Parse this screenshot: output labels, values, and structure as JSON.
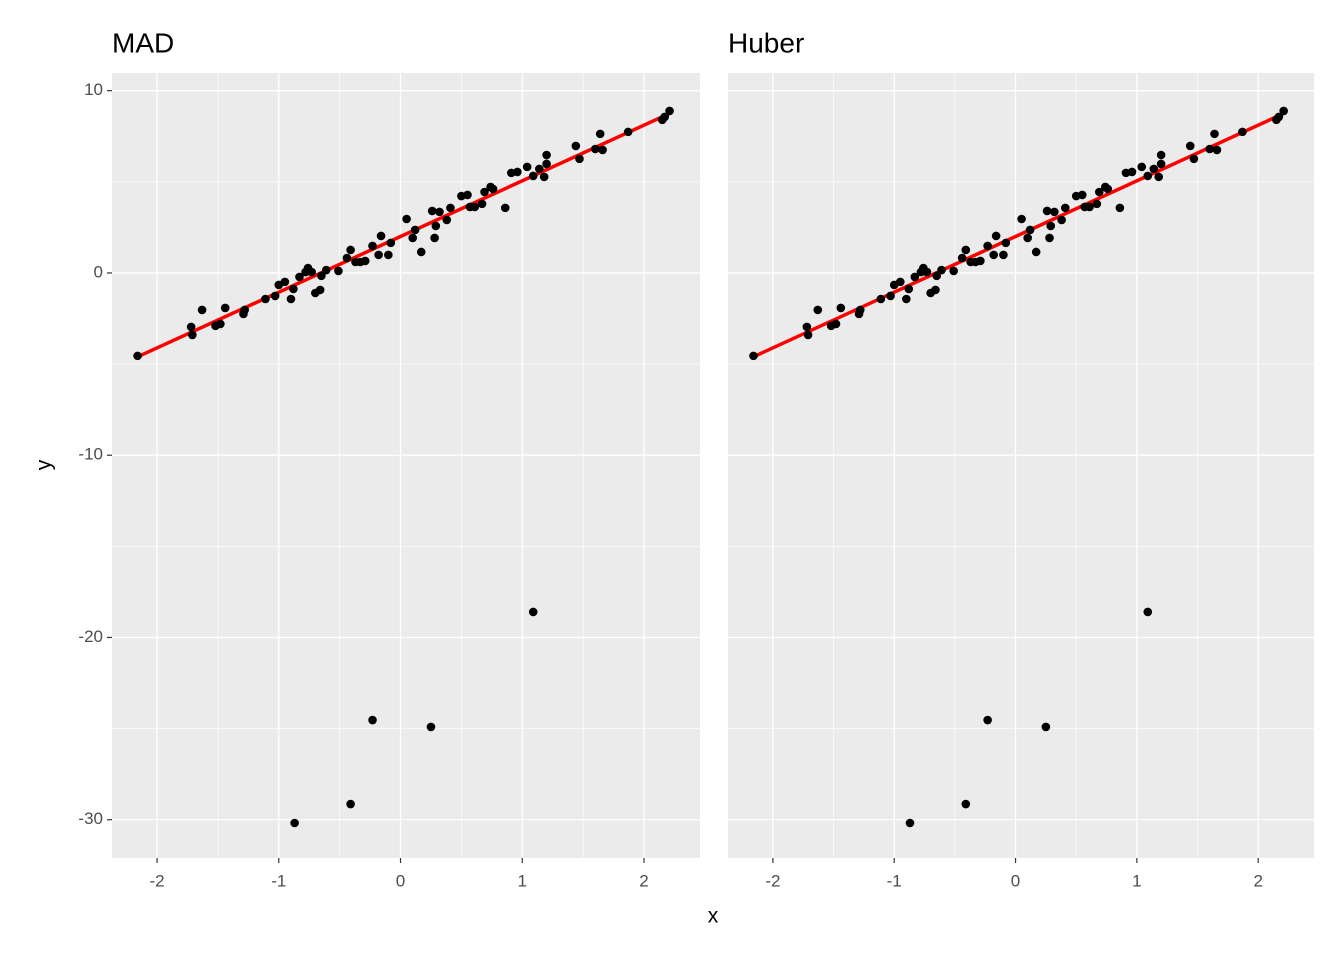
{
  "x_label": "x",
  "y_label": "y",
  "chart_data": [
    {
      "type": "scatter",
      "title": "MAD",
      "x": [
        -2.16,
        -1.72,
        -1.71,
        -1.63,
        -1.52,
        -1.48,
        -1.44,
        -1.29,
        -1.28,
        -1.11,
        -1.03,
        -1.0,
        -0.95,
        -0.9,
        -0.88,
        -0.83,
        -0.78,
        -0.76,
        -0.73,
        -0.7,
        -0.66,
        -0.65,
        -0.61,
        -0.51,
        -0.44,
        -0.41,
        -0.37,
        -0.33,
        -0.29,
        -0.23,
        -0.18,
        -0.16,
        -0.1,
        -0.08,
        0.05,
        0.1,
        0.12,
        0.17,
        0.26,
        0.28,
        0.29,
        0.32,
        0.38,
        0.41,
        0.5,
        0.55,
        0.57,
        0.61,
        0.67,
        0.69,
        0.74,
        0.76,
        0.86,
        0.91,
        0.96,
        1.04,
        1.09,
        1.14,
        1.18,
        1.2,
        1.2,
        1.44,
        1.47,
        1.6,
        1.64,
        1.66,
        1.87,
        2.15,
        2.17,
        2.21,
        1.09,
        -0.23,
        0.25,
        -0.41,
        -0.87
      ],
      "y": [
        -4.55,
        -2.96,
        -3.4,
        -2.03,
        -2.9,
        -2.8,
        -1.92,
        -2.25,
        -2.03,
        -1.43,
        -1.26,
        -0.66,
        -0.49,
        -1.43,
        -0.88,
        -0.22,
        0.05,
        0.27,
        0.05,
        -1.1,
        -0.93,
        -0.16,
        0.16,
        0.11,
        0.82,
        1.26,
        0.6,
        0.6,
        0.66,
        1.48,
        0.99,
        2.03,
        0.99,
        1.65,
        2.96,
        1.92,
        2.36,
        1.15,
        3.4,
        1.92,
        2.58,
        3.35,
        2.91,
        3.57,
        4.22,
        4.28,
        3.62,
        3.62,
        3.79,
        4.44,
        4.72,
        4.61,
        3.57,
        5.49,
        5.54,
        5.82,
        5.32,
        5.71,
        5.27,
        6.47,
        5.98,
        6.97,
        6.26,
        6.8,
        7.63,
        6.75,
        7.74,
        8.4,
        8.56,
        8.89,
        -18.6,
        -24.53,
        -24.91,
        -29.14,
        -30.18
      ],
      "point_color": "#000000",
      "fit": {
        "x": [
          -2.16,
          2.21
        ],
        "y": [
          -4.6,
          8.75
        ],
        "color": "#ff0000"
      },
      "xlim": [
        -2.37,
        2.46
      ],
      "ylim": [
        -32.1,
        10.97
      ],
      "xticks": [
        -2,
        -1,
        0,
        1,
        2
      ],
      "yticks": [
        -30,
        -20,
        -10,
        0,
        10
      ],
      "minor_xticks": [
        -1.5,
        -0.5,
        0.5,
        1.5
      ],
      "minor_yticks": [
        -25,
        -15,
        -5,
        5
      ]
    },
    {
      "type": "scatter",
      "title": "Huber",
      "x": [
        -2.16,
        -1.72,
        -1.71,
        -1.63,
        -1.52,
        -1.48,
        -1.44,
        -1.29,
        -1.28,
        -1.11,
        -1.03,
        -1.0,
        -0.95,
        -0.9,
        -0.88,
        -0.83,
        -0.78,
        -0.76,
        -0.73,
        -0.7,
        -0.66,
        -0.65,
        -0.61,
        -0.51,
        -0.44,
        -0.41,
        -0.37,
        -0.33,
        -0.29,
        -0.23,
        -0.18,
        -0.16,
        -0.1,
        -0.08,
        0.05,
        0.1,
        0.12,
        0.17,
        0.26,
        0.28,
        0.29,
        0.32,
        0.38,
        0.41,
        0.5,
        0.55,
        0.57,
        0.61,
        0.67,
        0.69,
        0.74,
        0.76,
        0.86,
        0.91,
        0.96,
        1.04,
        1.09,
        1.14,
        1.18,
        1.2,
        1.2,
        1.44,
        1.47,
        1.6,
        1.64,
        1.66,
        1.87,
        2.15,
        2.17,
        2.21,
        1.09,
        -0.23,
        0.25,
        -0.41,
        -0.87
      ],
      "y": [
        -4.55,
        -2.96,
        -3.4,
        -2.03,
        -2.9,
        -2.8,
        -1.92,
        -2.25,
        -2.03,
        -1.43,
        -1.26,
        -0.66,
        -0.49,
        -1.43,
        -0.88,
        -0.22,
        0.05,
        0.27,
        0.05,
        -1.1,
        -0.93,
        -0.16,
        0.16,
        0.11,
        0.82,
        1.26,
        0.6,
        0.6,
        0.66,
        1.48,
        0.99,
        2.03,
        0.99,
        1.65,
        2.96,
        1.92,
        2.36,
        1.15,
        3.4,
        1.92,
        2.58,
        3.35,
        2.91,
        3.57,
        4.22,
        4.28,
        3.62,
        3.62,
        3.79,
        4.44,
        4.72,
        4.61,
        3.57,
        5.49,
        5.54,
        5.82,
        5.32,
        5.71,
        5.27,
        6.47,
        5.98,
        6.97,
        6.26,
        6.8,
        7.63,
        6.75,
        7.74,
        8.4,
        8.56,
        8.89,
        -18.6,
        -24.53,
        -24.91,
        -29.14,
        -30.18
      ],
      "point_color": "#000000",
      "fit": {
        "x": [
          -2.16,
          2.21
        ],
        "y": [
          -4.6,
          8.75
        ],
        "color": "#ff0000"
      },
      "xlim": [
        -2.37,
        2.46
      ],
      "ylim": [
        -32.1,
        10.97
      ],
      "xticks": [
        -2,
        -1,
        0,
        1,
        2
      ],
      "yticks": [
        -30,
        -20,
        -10,
        0,
        10
      ],
      "minor_xticks": [
        -1.5,
        -0.5,
        0.5,
        1.5
      ],
      "minor_yticks": [
        -25,
        -15,
        -5,
        5
      ]
    }
  ]
}
